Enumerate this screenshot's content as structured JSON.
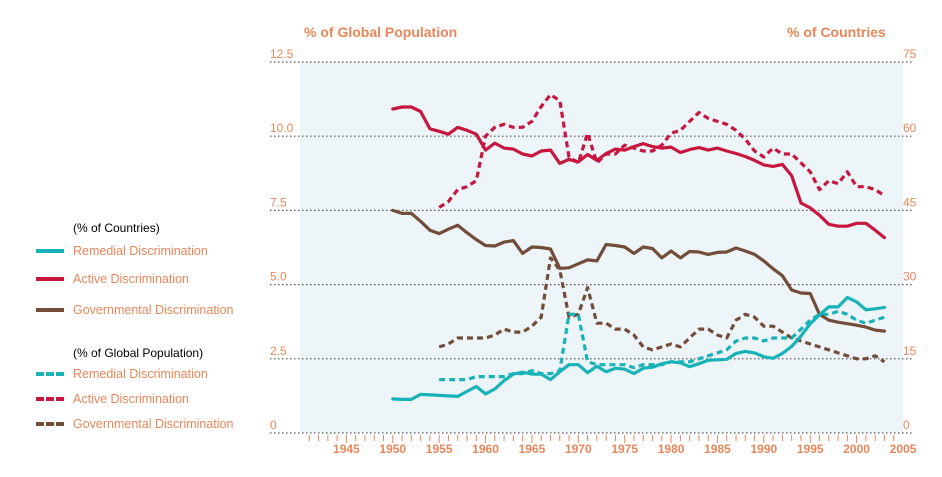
{
  "left_axis_title": "% of Global Population",
  "right_axis_title": "% of Countries",
  "legend": {
    "countries_heading": "(% of Countries)",
    "population_heading": "(% of Global Population)",
    "items_countries": [
      {
        "label": "Remedial Discrimination",
        "color": "#17b3b8",
        "style": "solid"
      },
      {
        "label": "Active Discrimination",
        "color": "#c8163f",
        "style": "solid"
      },
      {
        "label": "Governmental Discrimination",
        "color": "#734c3a",
        "style": "solid"
      }
    ],
    "items_population": [
      {
        "label": "Remedial Discrimination",
        "color": "#17b3b8",
        "style": "dashed"
      },
      {
        "label": "Active Discrimination",
        "color": "#c8163f",
        "style": "dashed"
      },
      {
        "label": "Governmental Discrimination",
        "color": "#734c3a",
        "style": "dashed"
      }
    ]
  },
  "chart_data": {
    "type": "line",
    "x_ticks": [
      "1945",
      "1950",
      "1955",
      "1960",
      "1965",
      "1970",
      "1975",
      "1980",
      "1985",
      "1990",
      "1995",
      "2000",
      "2005"
    ],
    "xlim": [
      1940,
      2005
    ],
    "y_left_ticks": [
      "0",
      "2.5",
      "5.0",
      "7.5",
      "10.0",
      "12.5"
    ],
    "y_left_lim": [
      0,
      12.5
    ],
    "y_right_ticks": [
      "0",
      "15",
      "30",
      "45",
      "60",
      "75"
    ],
    "y_right_lim": [
      0,
      75
    ],
    "grid": "horizontal dotted",
    "series": [
      {
        "name": "Active Discrimination",
        "axis": "right",
        "style": "solid",
        "color": "#c8163f",
        "x": [
          1950,
          1951,
          1952,
          1953,
          1954,
          1955,
          1956,
          1957,
          1958,
          1959,
          1960,
          1961,
          1962,
          1963,
          1964,
          1965,
          1966,
          1967,
          1968,
          1969,
          1970,
          1971,
          1972,
          1973,
          1974,
          1975,
          1976,
          1977,
          1978,
          1979,
          1980,
          1981,
          1982,
          1983,
          1984,
          1985,
          1986,
          1987,
          1988,
          1989,
          1990,
          1991,
          1992,
          1993,
          1994,
          1995,
          1996,
          1997,
          1998,
          1999,
          2000,
          2001,
          2002,
          2003
        ],
        "y": [
          65.5,
          65.9,
          65.9,
          65,
          61.5,
          61,
          60.4,
          61.8,
          61.2,
          60.4,
          57.2,
          58.6,
          57.6,
          57.4,
          56.4,
          56,
          57,
          57.2,
          54.5,
          55.3,
          54.8,
          56.3,
          55.1,
          56.5,
          57.4,
          57.2,
          57.9,
          58.5,
          57.9,
          57.6,
          57.8,
          56.7,
          57.3,
          57.7,
          57.2,
          57.6,
          57,
          56.5,
          55.9,
          55.1,
          54.2,
          53.9,
          54.3,
          52,
          46.5,
          45.5,
          44,
          42.2,
          41.8,
          41.8,
          42.4,
          42.4,
          41,
          39.5
        ]
      },
      {
        "name": "Governmental Discrimination",
        "axis": "right",
        "style": "solid",
        "color": "#734c3a",
        "x": [
          1950,
          1951,
          1952,
          1953,
          1954,
          1955,
          1956,
          1957,
          1958,
          1959,
          1960,
          1961,
          1962,
          1963,
          1964,
          1965,
          1966,
          1967,
          1968,
          1969,
          1970,
          1971,
          1972,
          1973,
          1974,
          1975,
          1976,
          1977,
          1978,
          1979,
          1980,
          1981,
          1982,
          1983,
          1984,
          1985,
          1986,
          1987,
          1988,
          1989,
          1990,
          1991,
          1992,
          1993,
          1994,
          1995,
          1996,
          1997,
          1998,
          1999,
          2000,
          2001,
          2002,
          2003
        ],
        "y": [
          45,
          44.4,
          44.4,
          42.8,
          41,
          40.3,
          41.2,
          42,
          40.5,
          39.1,
          37.9,
          37.8,
          38.6,
          38.9,
          36.3,
          37.6,
          37.5,
          37.2,
          33.3,
          33.4,
          34.2,
          35,
          34.8,
          38.1,
          37.9,
          37.6,
          36.3,
          37.6,
          37.3,
          35.4,
          36.8,
          35.4,
          36.7,
          36.6,
          36.1,
          36.5,
          36.6,
          37.4,
          36.8,
          36.1,
          34.8,
          33.2,
          31.8,
          28.9,
          28.3,
          28.2,
          24,
          22.8,
          22.4,
          22.1,
          21.8,
          21.4,
          20.8,
          20.6
        ]
      },
      {
        "name": "Remedial Discrimination",
        "axis": "right",
        "style": "solid",
        "color": "#17b3b8",
        "x": [
          1950,
          1951,
          1952,
          1953,
          1954,
          1955,
          1956,
          1957,
          1958,
          1959,
          1960,
          1961,
          1962,
          1963,
          1964,
          1965,
          1966,
          1967,
          1968,
          1969,
          1970,
          1971,
          1972,
          1973,
          1974,
          1975,
          1976,
          1977,
          1978,
          1979,
          1980,
          1981,
          1982,
          1983,
          1984,
          1985,
          1986,
          1987,
          1988,
          1989,
          1990,
          1991,
          1992,
          1993,
          1994,
          1995,
          1996,
          1997,
          1998,
          1999,
          2000,
          2001,
          2002,
          2003
        ],
        "y": [
          6.9,
          6.8,
          6.8,
          7.8,
          7.7,
          7.6,
          7.5,
          7.4,
          8.4,
          9.4,
          7.9,
          8.9,
          10.6,
          11.9,
          12.3,
          11.9,
          11.9,
          10.8,
          12.4,
          13.8,
          13.8,
          12.2,
          13.5,
          12.4,
          13.1,
          12.9,
          12,
          13.1,
          13.3,
          14,
          14.4,
          14.2,
          13.4,
          14,
          14.7,
          14.8,
          14.9,
          16.1,
          16.5,
          16.2,
          15.4,
          15.1,
          16.1,
          17.5,
          19.6,
          22.1,
          23.9,
          25.5,
          25.5,
          27.4,
          26.5,
          24.9,
          25.1,
          25.4
        ]
      },
      {
        "name": "Active Discrimination",
        "axis": "left",
        "style": "dashed",
        "color": "#c8163f",
        "x": [
          1955,
          1956,
          1957,
          1958,
          1959,
          1960,
          1961,
          1962,
          1963,
          1964,
          1965,
          1966,
          1967,
          1968,
          1969,
          1970,
          1971,
          1972,
          1973,
          1974,
          1975,
          1976,
          1977,
          1978,
          1979,
          1980,
          1981,
          1982,
          1983,
          1984,
          1985,
          1986,
          1987,
          1988,
          1989,
          1990,
          1991,
          1992,
          1993,
          1994,
          1995,
          1996,
          1997,
          1998,
          1999,
          2000,
          2001,
          2002,
          2003
        ],
        "y": [
          7.6,
          7.8,
          8.2,
          8.3,
          8.5,
          10,
          10.3,
          10.4,
          10.3,
          10.3,
          10.5,
          11,
          11.4,
          11.2,
          9.3,
          9.1,
          10.1,
          9.1,
          9.4,
          9.4,
          9.7,
          9.6,
          9.5,
          9.5,
          9.7,
          10.1,
          10.2,
          10.5,
          10.8,
          10.6,
          10.5,
          10.4,
          10.2,
          9.9,
          9.5,
          9.3,
          9.6,
          9.4,
          9.4,
          9.1,
          8.8,
          8.2,
          8.5,
          8.4,
          8.8,
          8.3,
          8.3,
          8.2,
          8
        ]
      },
      {
        "name": "Governmental Discrimination",
        "axis": "left",
        "style": "dashed",
        "color": "#734c3a",
        "x": [
          1955,
          1956,
          1957,
          1958,
          1959,
          1960,
          1961,
          1962,
          1963,
          1964,
          1965,
          1966,
          1967,
          1968,
          1969,
          1970,
          1971,
          1972,
          1973,
          1974,
          1975,
          1976,
          1977,
          1978,
          1979,
          1980,
          1981,
          1982,
          1983,
          1984,
          1985,
          1986,
          1987,
          1988,
          1989,
          1990,
          1991,
          1992,
          1993,
          1994,
          1995,
          1996,
          1997,
          1998,
          1999,
          2000,
          2001,
          2002,
          2003
        ],
        "y": [
          2.9,
          3,
          3.2,
          3.2,
          3.2,
          3.2,
          3.3,
          3.5,
          3.4,
          3.4,
          3.6,
          3.9,
          5.9,
          5.5,
          3.9,
          4,
          4.9,
          3.7,
          3.7,
          3.5,
          3.5,
          3.3,
          2.9,
          2.8,
          2.9,
          3,
          2.9,
          3.2,
          3.5,
          3.5,
          3.3,
          3.2,
          3.8,
          4,
          3.9,
          3.6,
          3.6,
          3.4,
          3.2,
          3.1,
          3,
          2.9,
          2.8,
          2.7,
          2.6,
          2.5,
          2.5,
          2.6,
          2.4
        ]
      },
      {
        "name": "Remedial Discrimination",
        "axis": "left",
        "style": "dashed",
        "color": "#17b3b8",
        "x": [
          1955,
          1956,
          1957,
          1958,
          1959,
          1960,
          1961,
          1962,
          1963,
          1964,
          1965,
          1966,
          1967,
          1968,
          1969,
          1970,
          1971,
          1972,
          1973,
          1974,
          1975,
          1976,
          1977,
          1978,
          1979,
          1980,
          1981,
          1982,
          1983,
          1984,
          1985,
          1986,
          1987,
          1988,
          1989,
          1990,
          1991,
          1992,
          1993,
          1994,
          1995,
          1996,
          1997,
          1998,
          1999,
          2000,
          2001,
          2002,
          2003
        ],
        "y": [
          1.8,
          1.8,
          1.8,
          1.8,
          1.9,
          1.9,
          1.9,
          1.9,
          2,
          2,
          2.1,
          2,
          2,
          2.1,
          4,
          4,
          2.4,
          2.3,
          2.3,
          2.3,
          2.3,
          2.2,
          2.3,
          2.3,
          2.3,
          2.4,
          2.4,
          2.4,
          2.5,
          2.6,
          2.7,
          2.8,
          3.1,
          3.2,
          3.2,
          3.1,
          3.2,
          3.2,
          3.2,
          3.5,
          3.8,
          4,
          4,
          4.1,
          4,
          3.8,
          3.7,
          3.8,
          3.9
        ]
      }
    ]
  }
}
